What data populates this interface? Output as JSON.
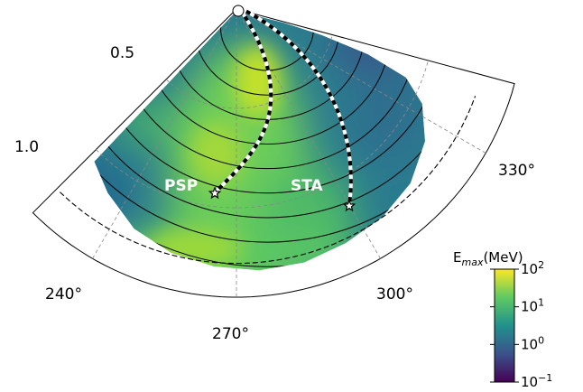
{
  "chart_data": {
    "type": "heatmap",
    "projection": "polar-sector",
    "angular_ticks": [
      "240°",
      "270°",
      "300°",
      "330°"
    ],
    "angular_range_deg": [
      225,
      345
    ],
    "radial_ticks": [
      "0.5",
      "1.0"
    ],
    "radial_range": [
      0,
      1.45
    ],
    "spacecraft": [
      {
        "name": "PSP",
        "longitude_deg": 262,
        "r": 1.0
      },
      {
        "name": "STA",
        "longitude_deg": 298,
        "r": 1.2
      }
    ],
    "colorbar": {
      "label_main": "E",
      "label_sub": "max",
      "label_unit": "(MeV)",
      "scale": "log",
      "range": [
        0.1,
        100
      ],
      "ticks": [
        {
          "value": 100,
          "base": "10",
          "exp": "2"
        },
        {
          "value": 10,
          "base": "10",
          "exp": "1"
        },
        {
          "value": 1,
          "base": "10",
          "exp": "0"
        },
        {
          "value": 0.1,
          "base": "10",
          "exp": "−1"
        }
      ],
      "colormap": "viridis",
      "colors": [
        "#440154",
        "#3b528b",
        "#21918c",
        "#5ec962",
        "#fde725"
      ]
    },
    "grid": true
  }
}
